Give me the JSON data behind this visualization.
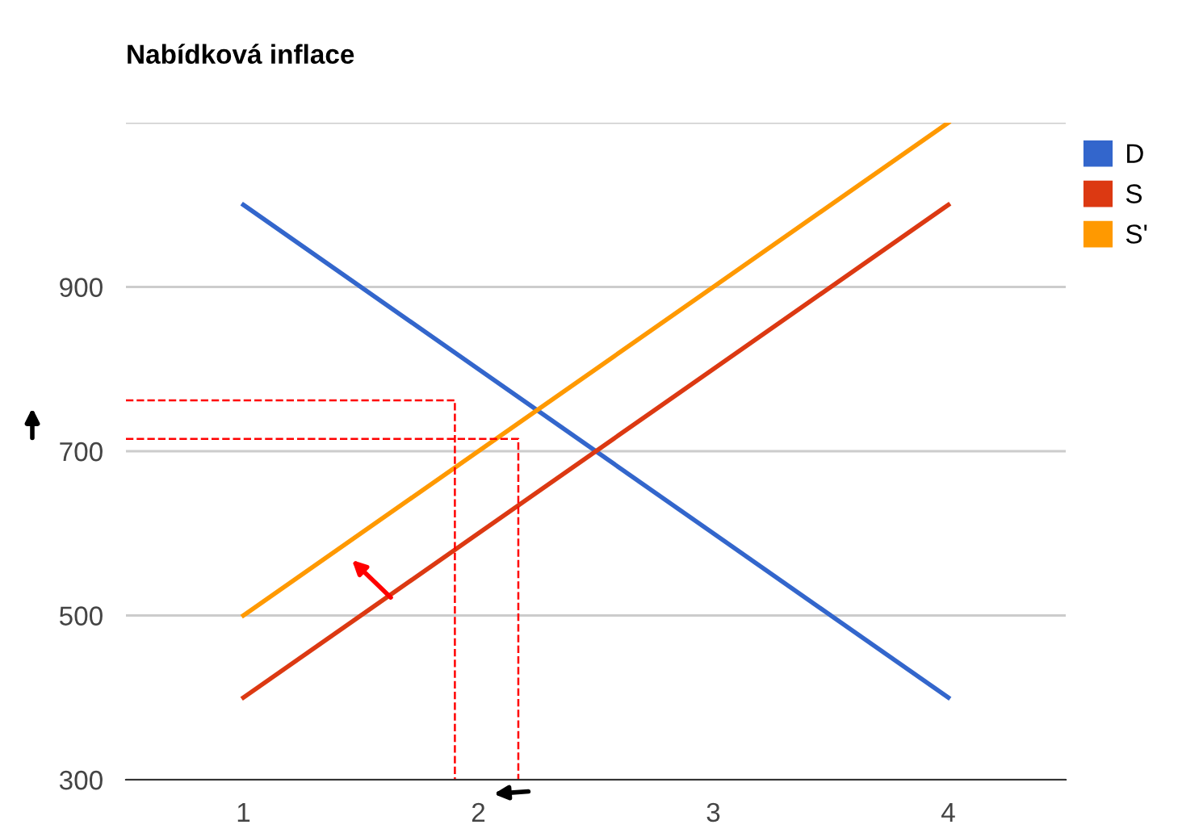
{
  "chart_data": {
    "type": "line",
    "title": "Nabídková inflace",
    "x": [
      1,
      2,
      3,
      4
    ],
    "series": [
      {
        "name": "D",
        "color": "#3366cc",
        "values": [
          1000,
          800,
          600,
          400
        ]
      },
      {
        "name": "S",
        "color": "#dc3912",
        "values": [
          400,
          600,
          800,
          1000
        ]
      },
      {
        "name": "S'",
        "color": "#ff9900",
        "values": [
          500,
          700,
          900,
          1100
        ]
      },
      {
        "color": "#ff0000",
        "line_style": "dashed",
        "x": [
          0.5,
          1.9,
          1.9
        ],
        "values": [
          762,
          762,
          300
        ]
      },
      {
        "color": "#ff0000",
        "line_style": "dashed",
        "x": [
          0.5,
          2.17,
          2.17
        ],
        "values": [
          715,
          715,
          300
        ]
      }
    ],
    "xlim": [
      0.5,
      4.5
    ],
    "xticks": [
      1,
      2,
      3,
      4
    ],
    "ylim": [
      300,
      1100
    ],
    "yticks": [
      300,
      500,
      700,
      900,
      {
        "value": 1100,
        "label": null
      }
    ],
    "grid": "y",
    "legend": "top right",
    "marker": "none",
    "line_style": "solid"
  }
}
